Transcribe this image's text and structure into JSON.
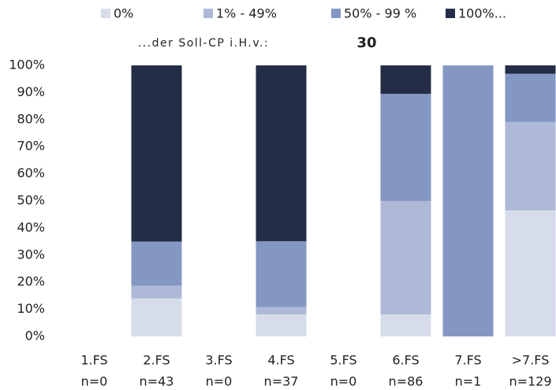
{
  "chart_data": {
    "type": "stacked_bar",
    "subtitle": "...der Soll-CP i.H.v.:",
    "subtitle_value": "30",
    "categories": [
      "1.FS",
      "2.FS",
      "3.FS",
      "4.FS",
      "5.FS",
      "6.FS",
      "7.FS",
      ">7.FS"
    ],
    "category_counts": [
      "n=0",
      "n=43",
      "n=0",
      "n=37",
      "n=0",
      "n=86",
      "n=1",
      "n=129"
    ],
    "series": [
      {
        "name": "0%",
        "color": "#d6dcea",
        "values": [
          0,
          14,
          0,
          8.1,
          0,
          8.1,
          0,
          46.5
        ]
      },
      {
        "name": "1% - 49%",
        "color": "#adb9d6",
        "values": [
          0,
          4.7,
          0,
          2.7,
          0,
          41.9,
          0,
          32.6
        ]
      },
      {
        "name": "50% - 99 %",
        "color": "#8497c3",
        "values": [
          0,
          16.3,
          0,
          24.3,
          0,
          39.5,
          100,
          17.8
        ]
      },
      {
        "name": "100%...",
        "color": "#232d45",
        "values": [
          0,
          65,
          0,
          64.9,
          0,
          10.5,
          0,
          3.1
        ]
      }
    ],
    "ylim": [
      0,
      100
    ],
    "yticks": [
      {
        "value": 0,
        "label": "0%"
      },
      {
        "value": 10,
        "label": "10%"
      },
      {
        "value": 20,
        "label": "20%"
      },
      {
        "value": 30,
        "label": "30%"
      },
      {
        "value": 40,
        "label": "40%"
      },
      {
        "value": 50,
        "label": "50%"
      },
      {
        "value": 60,
        "label": "60%"
      },
      {
        "value": 70,
        "label": "70%"
      },
      {
        "value": 80,
        "label": "80%"
      },
      {
        "value": 90,
        "label": "90%"
      },
      {
        "value": 100,
        "label": "100%"
      }
    ],
    "grid": false,
    "legend": "top"
  }
}
